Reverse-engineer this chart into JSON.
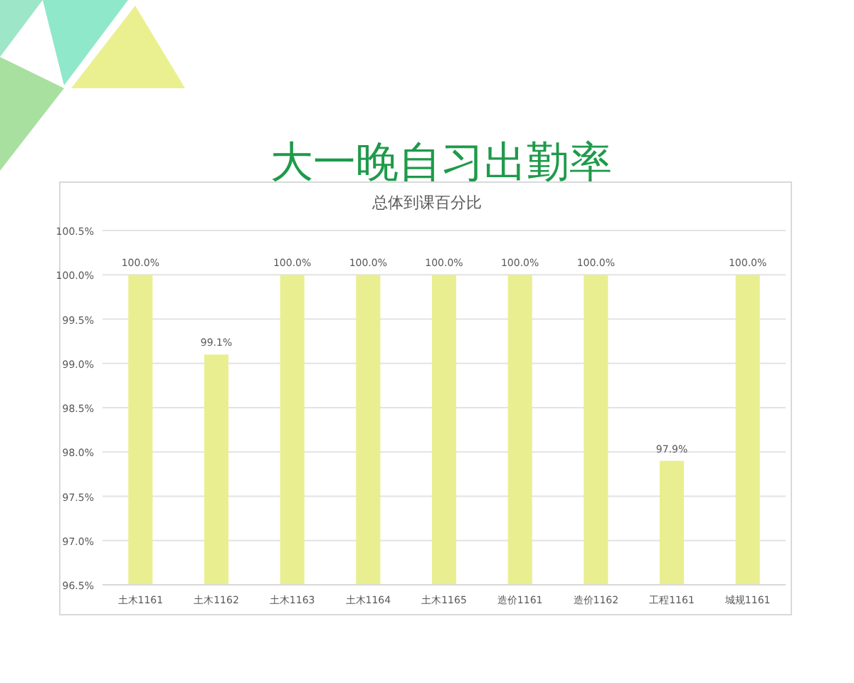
{
  "chart_data": {
    "type": "bar",
    "title": "大一晚自习出勤率",
    "subtitle": "总体到课百分比",
    "categories": [
      "土木1161",
      "土木1162",
      "土木1163",
      "土木1164",
      "土木1165",
      "造价1161",
      "造价1162",
      "工程1161",
      "城规1161"
    ],
    "values": [
      100,
      99.1,
      100,
      100,
      100,
      100,
      100,
      97.9,
      100
    ],
    "value_labels": [
      "100.0%",
      "99.1%",
      "100.0%",
      "100.0%",
      "100.0%",
      "100.0%",
      "100.0%",
      "97.9%",
      "100.0%"
    ],
    "color": "#e9ef91",
    "ylim": [
      96.5,
      100.5
    ],
    "yticks": [
      {
        "value": 96.5,
        "label": "96.5%"
      },
      {
        "value": 97,
        "label": "97.0%"
      },
      {
        "value": 97.5,
        "label": "97.5%"
      },
      {
        "value": 98,
        "label": "98.0%"
      },
      {
        "value": 98.5,
        "label": "98.5%"
      },
      {
        "value": 99,
        "label": "99.0%"
      },
      {
        "value": 99.5,
        "label": "99.5%"
      },
      {
        "value": 100,
        "label": "100.0%"
      },
      {
        "value": 100.5,
        "label": "100.5%"
      }
    ],
    "grid": "y"
  }
}
